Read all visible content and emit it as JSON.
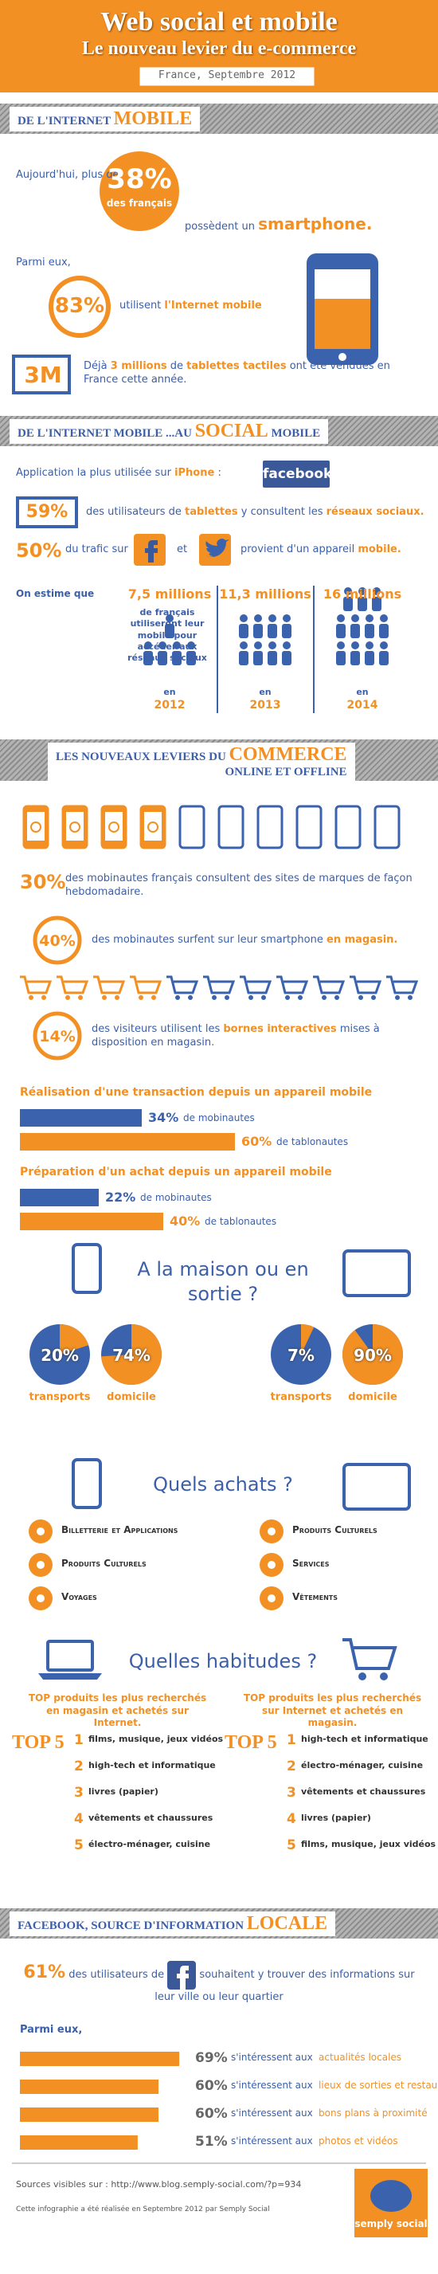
{
  "header": {
    "title": "Web social et mobile",
    "subtitle": "Le nouveau levier du e-commerce",
    "date": "France, Septembre 2012"
  },
  "mobile": {
    "heading": [
      "DE L'INTERNET ",
      "MOBILE"
    ],
    "smartphone": {
      "intro": "Aujourd'hui, plus de",
      "value": "38%",
      "value_note": "des français",
      "text": [
        "possèdent un ",
        "smartphone."
      ]
    },
    "internet": {
      "intro": "Parmi eux,",
      "value": "83%",
      "text": [
        "utilisent ",
        "l'Internet mobile"
      ]
    },
    "tablets": {
      "value": "3M",
      "text": [
        "Déjà ",
        "3 millions",
        " de ",
        "tablettes tactiles",
        " ont été vendues en France cette année."
      ]
    }
  },
  "social": {
    "heading": [
      "DE L'INTERNET MOBILE ...AU ",
      "SOCIAL",
      " MOBILE"
    ],
    "app": {
      "text": [
        "Application la plus utilisée sur ",
        "iPhone",
        " :"
      ],
      "logo": "facebook"
    },
    "tablets": {
      "value": "59%",
      "text": [
        "des utilisateurs de ",
        "tablettes",
        " y consultent les ",
        "réseaux sociaux."
      ]
    },
    "traffic": {
      "value": "50%",
      "text_before": "du trafic sur",
      "text_between": "et",
      "text": [
        "provient d'un appareil ",
        "mobile."
      ]
    },
    "forecast": {
      "intro": "On estime que",
      "note": "de français utiliseront leur mobile pour accéder aux réseaux sociaux",
      "year_prefix": "en",
      "items": [
        {
          "value": "7,5 millions",
          "year": "2012"
        },
        {
          "value": "11,3 millions",
          "year": "2013"
        },
        {
          "value": "16 millions",
          "year": "2014"
        }
      ]
    }
  },
  "commerce": {
    "heading": {
      "line1": [
        "LES NOUVEAUX LEVIERS DU ",
        "COMMERCE"
      ],
      "line2": "ONLINE ET OFFLINE"
    },
    "weekly": {
      "value": "30%",
      "text": "des mobinautes français consultent des sites de marques de façon hebdomadaire."
    },
    "in_store": {
      "value": "40%",
      "text": [
        "des mobinautes surfent sur leur smartphone ",
        "en magasin."
      ]
    },
    "kiosks": {
      "value": "14%",
      "text": [
        "des visiteurs utilisent les ",
        "bornes interactives",
        " mises à disposition en magasin."
      ]
    },
    "transaction": {
      "title": "Réalisation d'une transaction depuis un appareil mobile",
      "bars": [
        {
          "value": 34,
          "label": "34%",
          "text": "de mobinautes",
          "color": "#3b63ad"
        },
        {
          "value": 60,
          "label": "60%",
          "text": "de tablonautes",
          "color": "#f39023"
        }
      ]
    },
    "preparation": {
      "title": "Préparation d'un achat depuis un appareil mobile",
      "bars": [
        {
          "value": 22,
          "label": "22%",
          "text": "de mobinautes",
          "color": "#3b63ad"
        },
        {
          "value": 40,
          "label": "40%",
          "text": "de tablonautes",
          "color": "#f39023"
        }
      ]
    }
  },
  "home": {
    "title": "A la maison ou en sortie ?",
    "pies": [
      {
        "value": 20,
        "label": "20%",
        "text": "transports"
      },
      {
        "value": 74,
        "label": "74%",
        "text": "domicile"
      },
      {
        "value": 7,
        "label": "7%",
        "text": "transports"
      },
      {
        "value": 90,
        "label": "90%",
        "text": "domicile"
      }
    ]
  },
  "purchases": {
    "title": "Quels achats ?",
    "mobile": [
      "Billetterie et Applications",
      "Produits Culturels",
      "Voyages"
    ],
    "tablet": [
      "Produits Culturels",
      "Services",
      "Vêtements"
    ]
  },
  "habits": {
    "title": "Quelles habitudes ?",
    "lists": [
      {
        "title": "TOP produits les plus recherchés en magasin et achetés sur Internet.",
        "badge": "TOP 5",
        "items": [
          {
            "rank": 1,
            "text": "films, musique, jeux vidéos"
          },
          {
            "rank": 2,
            "text": "high-tech et informatique"
          },
          {
            "rank": 3,
            "text": "livres (papier)"
          },
          {
            "rank": 4,
            "text": "vêtements et chaussures"
          },
          {
            "rank": 5,
            "text": "électro-ménager, cuisine"
          }
        ]
      },
      {
        "title": "TOP produits les plus recherchés sur Internet et achetés en magasin.",
        "badge": "TOP 5",
        "items": [
          {
            "rank": 1,
            "text": "high-tech et informatique"
          },
          {
            "rank": 2,
            "text": "électro-ménager, cuisine"
          },
          {
            "rank": 3,
            "text": "vêtements et chaussures"
          },
          {
            "rank": 4,
            "text": "livres (papier)"
          },
          {
            "rank": 5,
            "text": "films, musique, jeux vidéos"
          }
        ]
      }
    ]
  },
  "facebook": {
    "heading": [
      "FACEBOOK, SOURCE D'INFORMATION ",
      "LOCALE"
    ],
    "value": "61%",
    "text_before": "des utilisateurs de",
    "text_after": "souhaitent y trouver des informations sur leur ville ou leur quartier",
    "intro": "Parmi eux,",
    "bars": [
      {
        "value": 69,
        "label": "69%",
        "prefix": "s'intéressent aux",
        "text": "actualités locales"
      },
      {
        "value": 60,
        "label": "60%",
        "prefix": "s'intéressent aux",
        "text": "lieux de sorties et restaurants"
      },
      {
        "value": 60,
        "label": "60%",
        "prefix": "s'intéressent aux",
        "text": "bons plans à proximité"
      },
      {
        "value": 51,
        "label": "51%",
        "prefix": "s'intéressent aux",
        "text": "photos et vidéos"
      }
    ]
  },
  "footer": {
    "sources": "Sources visibles sur : http://www.blog.semply-social.com/?p=934",
    "credit": "Cette infographie a été réalisée en Septembre 2012 par Semply Social",
    "logo": "semply social"
  }
}
